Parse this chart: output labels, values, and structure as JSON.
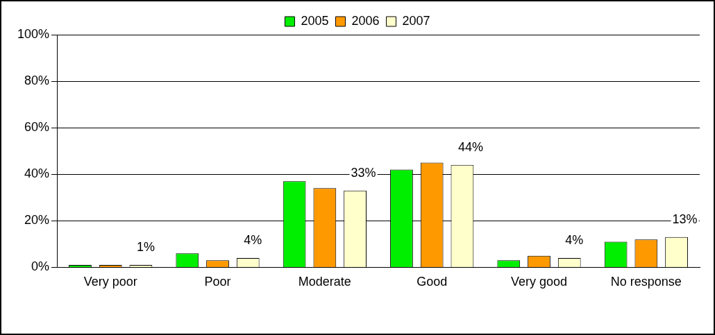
{
  "chart_data": {
    "type": "bar",
    "categories": [
      "Very poor",
      "Poor",
      "Moderate",
      "Good",
      "Very good",
      "No response"
    ],
    "series": [
      {
        "name": "2005",
        "color": "#00ee00",
        "values": [
          1,
          6,
          37,
          42,
          3,
          11
        ]
      },
      {
        "name": "2006",
        "color": "#ff9900",
        "values": [
          1,
          3,
          34,
          45,
          5,
          12
        ]
      },
      {
        "name": "2007",
        "color": "#ffffcc",
        "values": [
          1,
          4,
          33,
          44,
          4,
          13
        ],
        "value_labels": [
          "1%",
          "4%",
          "33%",
          "44%",
          "4%",
          "13%"
        ]
      }
    ],
    "ylim": [
      0,
      100
    ],
    "yticks": [
      {
        "value": 0,
        "label": "0%"
      },
      {
        "value": 20,
        "label": "20%"
      },
      {
        "value": 40,
        "label": "40%"
      },
      {
        "value": 60,
        "label": "60%"
      },
      {
        "value": 80,
        "label": "80%"
      },
      {
        "value": 100,
        "label": "100%"
      }
    ],
    "grid": "y",
    "legend": "top"
  }
}
